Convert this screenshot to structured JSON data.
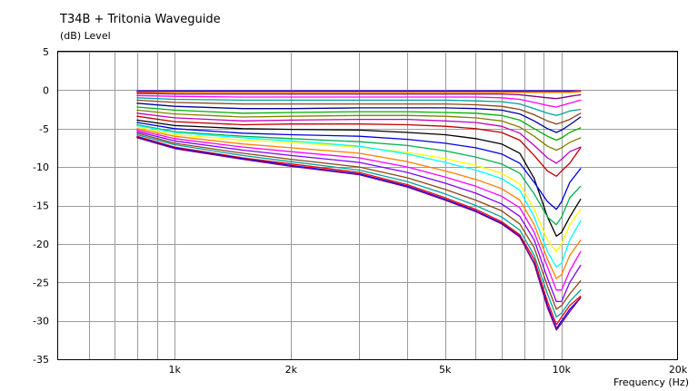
{
  "chart_data": {
    "type": "line",
    "title": "T34B + Tritonia Waveguide",
    "ylabel": "(dB)  Level",
    "xlabel": "Frequency  (Hz)",
    "xscale": "log",
    "xlim": [
      500,
      20000
    ],
    "ylim": [
      -35,
      5
    ],
    "yticks": [
      5,
      0,
      -5,
      -10,
      -15,
      -20,
      -25,
      -30,
      -35
    ],
    "xticks": [
      {
        "value": 1000,
        "label": "1k"
      },
      {
        "value": 2000,
        "label": "2k"
      },
      {
        "value": 5000,
        "label": "5k"
      },
      {
        "value": 10000,
        "label": "10k"
      },
      {
        "value": 20000,
        "label": "20k"
      }
    ],
    "x": [
      800,
      1000,
      1500,
      2000,
      3000,
      4000,
      5000,
      6000,
      7000,
      7800,
      8500,
      9200,
      9700,
      10000,
      10500,
      11200
    ],
    "series": [
      {
        "color": "#0000ff",
        "values": [
          -0.1,
          -0.1,
          -0.1,
          -0.1,
          -0.1,
          -0.1,
          -0.1,
          -0.1,
          -0.1,
          -0.1,
          -0.1,
          -0.1,
          -0.1,
          -0.1,
          -0.1,
          -0.1
        ]
      },
      {
        "color": "#ff0000",
        "values": [
          -0.2,
          -0.2,
          -0.2,
          -0.2,
          -0.2,
          -0.2,
          -0.2,
          -0.2,
          -0.2,
          -0.2,
          -0.2,
          -0.2,
          -0.2,
          -0.2,
          -0.2,
          -0.1
        ]
      },
      {
        "color": "#ff8000",
        "values": [
          -0.3,
          -0.3,
          -0.3,
          -0.3,
          -0.3,
          -0.3,
          -0.3,
          -0.3,
          -0.3,
          -0.3,
          -0.3,
          -0.3,
          -0.3,
          -0.3,
          -0.3,
          -0.2
        ]
      },
      {
        "color": "#800080",
        "values": [
          -0.4,
          -0.5,
          -0.5,
          -0.5,
          -0.5,
          -0.5,
          -0.5,
          -0.5,
          -0.5,
          -0.6,
          -0.8,
          -1.0,
          -1.1,
          -1.0,
          -0.8,
          -0.6
        ]
      },
      {
        "color": "#ff00ff",
        "values": [
          -0.7,
          -0.8,
          -0.9,
          -0.9,
          -0.9,
          -0.9,
          -0.9,
          -0.9,
          -1.0,
          -1.2,
          -1.6,
          -2.0,
          -2.2,
          -2.0,
          -1.7,
          -1.3
        ]
      },
      {
        "color": "#00a0a0",
        "values": [
          -1.0,
          -1.2,
          -1.3,
          -1.3,
          -1.3,
          -1.3,
          -1.3,
          -1.4,
          -1.5,
          -1.8,
          -2.4,
          -3.0,
          -3.3,
          -3.1,
          -2.7,
          -2.5
        ]
      },
      {
        "color": "#8b4513",
        "values": [
          -1.3,
          -1.6,
          -1.8,
          -1.8,
          -1.8,
          -1.8,
          -1.8,
          -1.9,
          -2.1,
          -2.5,
          -3.2,
          -4.0,
          -4.4,
          -4.2,
          -3.8,
          -3.0
        ]
      },
      {
        "color": "#0000a0",
        "values": [
          -1.7,
          -2.1,
          -2.4,
          -2.4,
          -2.3,
          -2.3,
          -2.3,
          -2.4,
          -2.6,
          -3.1,
          -4.0,
          -5.0,
          -5.5,
          -5.2,
          -4.5,
          -3.5
        ]
      },
      {
        "color": "#00b000",
        "values": [
          -2.2,
          -2.6,
          -3.0,
          -2.9,
          -2.8,
          -2.8,
          -2.9,
          -3.0,
          -3.3,
          -3.9,
          -5.0,
          -6.0,
          -6.5,
          -6.2,
          -5.5,
          -4.9
        ]
      },
      {
        "color": "#808000",
        "values": [
          -2.6,
          -3.1,
          -3.5,
          -3.4,
          -3.3,
          -3.3,
          -3.4,
          -3.6,
          -4.0,
          -4.8,
          -6.0,
          -7.3,
          -7.8,
          -7.5,
          -6.8,
          -6.2
        ]
      },
      {
        "color": "#c000c0",
        "values": [
          -3.0,
          -3.6,
          -4.0,
          -3.9,
          -3.8,
          -3.8,
          -4.0,
          -4.2,
          -4.7,
          -5.6,
          -7.2,
          -8.8,
          -9.5,
          -9.0,
          -8.0,
          -7.4
        ]
      },
      {
        "color": "#c00000",
        "values": [
          -3.4,
          -4.1,
          -4.5,
          -4.4,
          -4.4,
          -4.5,
          -4.7,
          -5.0,
          -5.5,
          -6.5,
          -8.5,
          -10.5,
          -11.2,
          -10.5,
          -9.5,
          -7.5
        ]
      },
      {
        "color": "#000000",
        "values": [
          -3.9,
          -4.6,
          -5.0,
          -5.1,
          -5.2,
          -5.5,
          -5.8,
          -6.3,
          -7.0,
          -8.2,
          -11.5,
          -16.5,
          -19.0,
          -18.5,
          -16.5,
          -14.2
        ]
      },
      {
        "color": "#0000e0",
        "values": [
          -4.2,
          -5.0,
          -5.6,
          -5.8,
          -6.0,
          -6.4,
          -6.9,
          -7.5,
          -8.3,
          -9.5,
          -12.0,
          -14.5,
          -15.5,
          -14.5,
          -12.0,
          -10.2
        ]
      },
      {
        "color": "#00b050",
        "values": [
          -4.5,
          -5.4,
          -6.0,
          -6.3,
          -6.7,
          -7.2,
          -7.9,
          -8.7,
          -9.6,
          -10.8,
          -13.5,
          -16.5,
          -17.5,
          -16.5,
          -14.0,
          -12.5
        ]
      },
      {
        "color": "#ffff00",
        "values": [
          -4.8,
          -5.8,
          -6.5,
          -6.8,
          -7.4,
          -8.1,
          -8.9,
          -9.8,
          -10.8,
          -12.2,
          -15.5,
          -19.5,
          -21.0,
          -20.0,
          -17.5,
          -15.5
        ]
      },
      {
        "color": "#00ffff",
        "values": [
          -4.6,
          -5.5,
          -6.2,
          -6.6,
          -7.3,
          -8.3,
          -9.4,
          -10.4,
          -11.5,
          -13.0,
          -16.5,
          -21.0,
          -23.0,
          -22.5,
          -19.5,
          -17.0
        ]
      },
      {
        "color": "#ff8000",
        "values": [
          -5.0,
          -6.0,
          -7.0,
          -7.5,
          -8.2,
          -9.3,
          -10.5,
          -11.6,
          -12.8,
          -14.3,
          -17.5,
          -22.0,
          -24.5,
          -24.0,
          -21.5,
          -19.5
        ]
      },
      {
        "color": "#ff00ff",
        "values": [
          -5.2,
          -6.3,
          -7.4,
          -8.0,
          -8.8,
          -10.0,
          -11.3,
          -12.5,
          -13.8,
          -15.3,
          -18.5,
          -23.0,
          -26.0,
          -26.0,
          -23.5,
          -21.0
        ]
      },
      {
        "color": "#8000ff",
        "values": [
          -5.4,
          -6.6,
          -7.8,
          -8.5,
          -9.4,
          -10.7,
          -12.1,
          -13.4,
          -14.8,
          -16.4,
          -19.5,
          -24.5,
          -27.5,
          -27.5,
          -25.0,
          -22.8
        ]
      },
      {
        "color": "#8b4513",
        "values": [
          -5.6,
          -6.9,
          -8.2,
          -9.0,
          -10.0,
          -11.4,
          -12.9,
          -14.3,
          -15.7,
          -17.4,
          -20.5,
          -25.5,
          -28.5,
          -28.0,
          -26.5,
          -24.8
        ]
      },
      {
        "color": "#00a0a0",
        "values": [
          -5.8,
          -7.1,
          -8.5,
          -9.3,
          -10.4,
          -11.9,
          -13.5,
          -15.0,
          -16.5,
          -18.2,
          -21.5,
          -26.5,
          -29.5,
          -29.0,
          -27.5,
          -26.0
        ]
      },
      {
        "color": "#ff0000",
        "values": [
          -6.0,
          -7.4,
          -8.8,
          -9.6,
          -10.7,
          -12.3,
          -14.0,
          -15.5,
          -17.1,
          -18.8,
          -22.0,
          -27.5,
          -30.5,
          -29.5,
          -28.0,
          -26.8
        ]
      },
      {
        "color": "#0000ff",
        "values": [
          -6.1,
          -7.5,
          -8.9,
          -9.8,
          -10.9,
          -12.5,
          -14.2,
          -15.7,
          -17.3,
          -19.0,
          -22.5,
          -28.0,
          -31.0,
          -30.0,
          -28.5,
          -27.0
        ]
      },
      {
        "color": "#800080",
        "values": [
          -6.2,
          -7.6,
          -9.0,
          -9.9,
          -11.0,
          -12.6,
          -14.3,
          -15.8,
          -17.4,
          -19.1,
          -22.6,
          -28.3,
          -31.2,
          -30.3,
          -28.8,
          -27.0
        ]
      }
    ]
  }
}
